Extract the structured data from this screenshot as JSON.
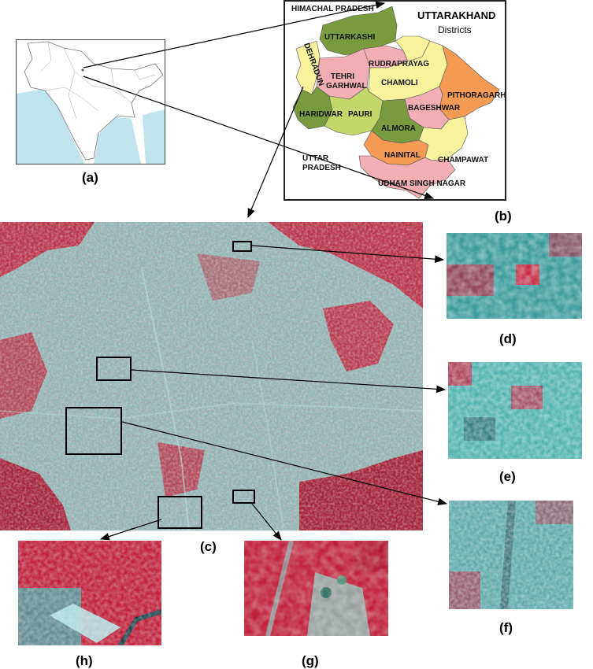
{
  "panel_labels": {
    "a": "(a)",
    "b": "(b)",
    "c": "(c)",
    "d": "(d)",
    "e": "(e)",
    "f": "(f)",
    "g": "(g)",
    "h": "(h)"
  },
  "uttarakhand_map": {
    "title_line1": "UTTARAKHAND",
    "title_line2": "Districts",
    "neighbors": {
      "north": "HIMACHAL PRADESH",
      "south_line1": "UTTAR",
      "south_line2": "PRADESH"
    },
    "districts": {
      "uttarkashi": "UTTARKASHI",
      "dehradun": "DEHRADUN",
      "tehri_line1": "TEHRI",
      "tehri_line2": "GARHWAL",
      "rudraprayag": "RUDRAPRAYAG",
      "chamoli": "CHAMOLI",
      "pithoragarh": "PITHORAGARH",
      "bageshwar": "BAGESHWAR",
      "haridwar": "HARIDWAR",
      "pauri": "PAURI",
      "almora": "ALMORA",
      "nainital": "NAINITAL",
      "champawat": "CHAMPAWAT",
      "udham_singh_nagar": "UDHAM SINGH NAGAR"
    },
    "colors": {
      "dark_green": "#7a9a3e",
      "yellow": "#f8f39c",
      "pink": "#f2aeb4",
      "orange": "#f39a54",
      "light_green": "#c4d76a"
    }
  },
  "imagery": {
    "vegetation_color": "#c0203a",
    "urban_color": "#7fb8b4"
  }
}
